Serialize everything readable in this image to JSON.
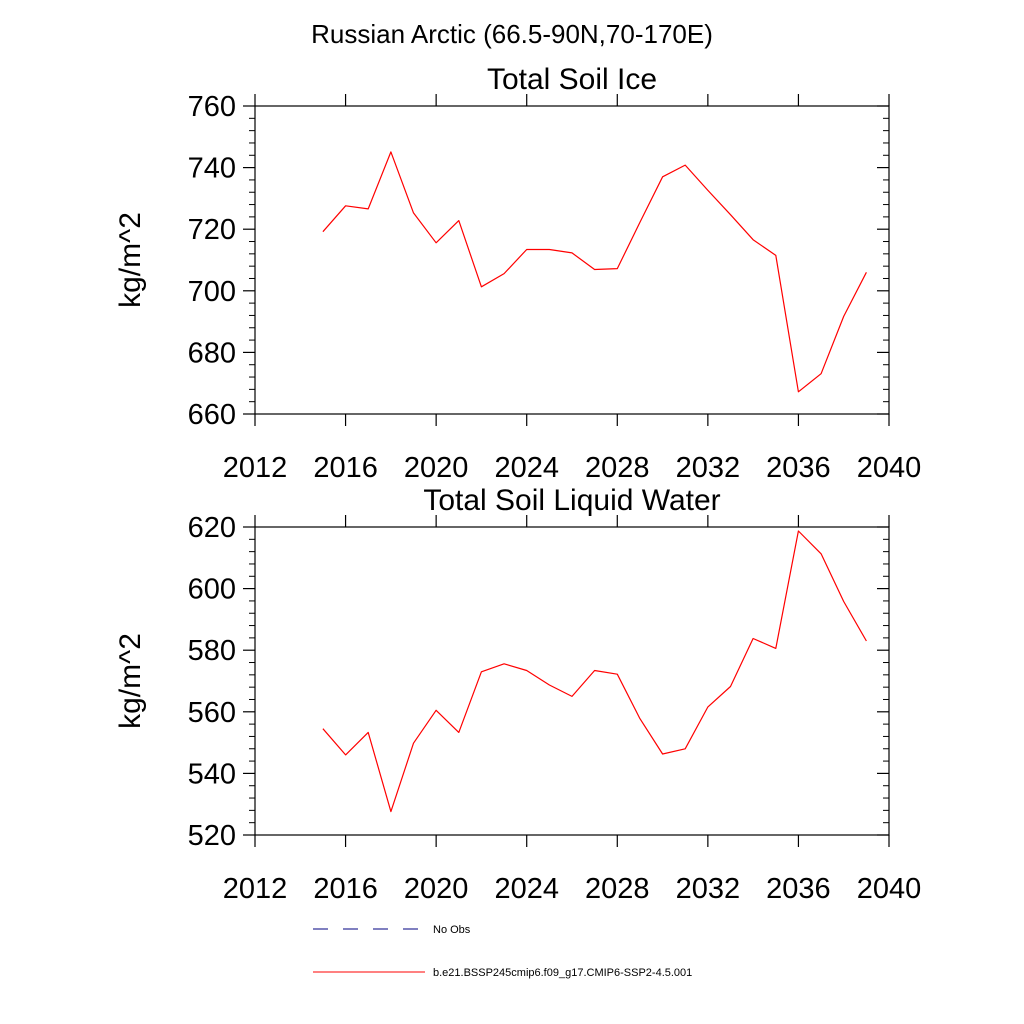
{
  "figure": {
    "title": "Russian Arctic (66.5-90N,70-170E)"
  },
  "chart_data": [
    {
      "type": "line",
      "title": "Total Soil Ice",
      "xlabel": "",
      "ylabel": "kg/m^2",
      "xlim": [
        2012,
        2040
      ],
      "ylim": [
        660,
        760
      ],
      "xticks": [
        2012,
        2016,
        2020,
        2024,
        2028,
        2032,
        2036,
        2040
      ],
      "yticks": [
        660,
        680,
        700,
        720,
        740,
        760
      ],
      "grid": false,
      "series": [
        {
          "name": "b.e21.BSSP245cmip6.f09_g17.CMIP6-SSP2-4.5.001",
          "color": "#ff0000",
          "x": [
            2015,
            2016,
            2017,
            2018,
            2019,
            2020,
            2021,
            2022,
            2023,
            2024,
            2025,
            2026,
            2027,
            2028,
            2029,
            2030,
            2031,
            2032,
            2033,
            2034,
            2035,
            2036,
            2037,
            2038,
            2039
          ],
          "y": [
            719.2,
            727.6,
            726.6,
            745.1,
            725.3,
            715.6,
            722.8,
            701.3,
            705.6,
            713.4,
            713.4,
            712.3,
            706.9,
            707.2,
            722.2,
            737.0,
            740.8,
            732.6,
            724.7,
            716.6,
            711.5,
            667.2,
            673.1,
            691.7,
            706.0
          ]
        }
      ]
    },
    {
      "type": "line",
      "title": "Total Soil Liquid Water",
      "xlabel": "",
      "ylabel": "kg/m^2",
      "xlim": [
        2012,
        2040
      ],
      "ylim": [
        520,
        620
      ],
      "xticks": [
        2012,
        2016,
        2020,
        2024,
        2028,
        2032,
        2036,
        2040
      ],
      "yticks": [
        520,
        540,
        560,
        580,
        600,
        620
      ],
      "grid": false,
      "series": [
        {
          "name": "b.e21.BSSP245cmip6.f09_g17.CMIP6-SSP2-4.5.001",
          "color": "#ff0000",
          "x": [
            2015,
            2016,
            2017,
            2018,
            2019,
            2020,
            2021,
            2022,
            2023,
            2024,
            2025,
            2026,
            2027,
            2028,
            2029,
            2030,
            2031,
            2032,
            2033,
            2034,
            2035,
            2036,
            2037,
            2038,
            2039
          ],
          "y": [
            554.5,
            546.0,
            553.3,
            527.6,
            549.8,
            560.5,
            553.3,
            573.0,
            575.6,
            573.4,
            568.7,
            565.0,
            573.4,
            572.2,
            557.8,
            546.3,
            548.0,
            561.6,
            568.2,
            583.8,
            580.6,
            618.7,
            611.3,
            595.8,
            583.0
          ]
        }
      ]
    }
  ],
  "legend": {
    "position": "bottom",
    "items": [
      {
        "label": "No Obs",
        "color": "#000080",
        "style": "dashed"
      },
      {
        "label": "b.e21.BSSP245cmip6.f09_g17.CMIP6-SSP2-4.5.001",
        "color": "#ff0000",
        "style": "solid"
      }
    ]
  }
}
